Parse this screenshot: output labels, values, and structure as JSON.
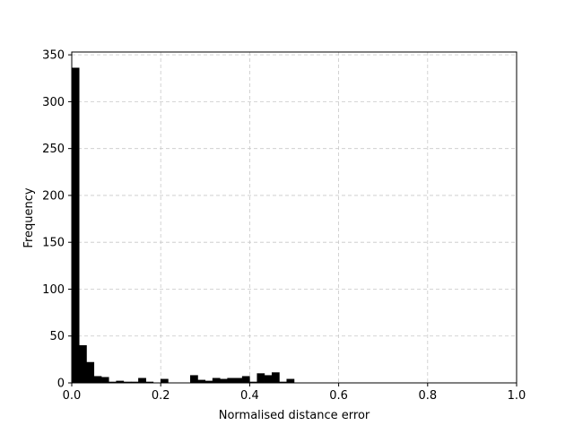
{
  "chart_data": {
    "type": "bar",
    "title": "",
    "xlabel": "Normalised distance error",
    "ylabel": "Frequency",
    "xlim": [
      0.0,
      1.0
    ],
    "ylim": [
      0,
      353
    ],
    "xticks": [
      "0.0",
      "0.2",
      "0.4",
      "0.6",
      "0.8",
      "1.0"
    ],
    "xtick_values": [
      0.0,
      0.2,
      0.4,
      0.6,
      0.8,
      1.0
    ],
    "yticks": [
      "0",
      "50",
      "100",
      "150",
      "200",
      "250",
      "300",
      "350"
    ],
    "ytick_values": [
      0,
      50,
      100,
      150,
      200,
      250,
      300,
      350
    ],
    "grid": true,
    "bar_color": "#000000",
    "bins": [
      {
        "x0": 0.0,
        "x1": 0.0167,
        "value": 336
      },
      {
        "x0": 0.0167,
        "x1": 0.0333,
        "value": 40
      },
      {
        "x0": 0.0333,
        "x1": 0.05,
        "value": 22
      },
      {
        "x0": 0.05,
        "x1": 0.0667,
        "value": 7
      },
      {
        "x0": 0.0667,
        "x1": 0.0833,
        "value": 6
      },
      {
        "x0": 0.0833,
        "x1": 0.1,
        "value": 1
      },
      {
        "x0": 0.1,
        "x1": 0.1167,
        "value": 2
      },
      {
        "x0": 0.1167,
        "x1": 0.1333,
        "value": 1
      },
      {
        "x0": 0.1333,
        "x1": 0.15,
        "value": 1
      },
      {
        "x0": 0.15,
        "x1": 0.1667,
        "value": 5
      },
      {
        "x0": 0.1667,
        "x1": 0.1833,
        "value": 1
      },
      {
        "x0": 0.1833,
        "x1": 0.2,
        "value": 0
      },
      {
        "x0": 0.2,
        "x1": 0.2167,
        "value": 4
      },
      {
        "x0": 0.2167,
        "x1": 0.2333,
        "value": 0
      },
      {
        "x0": 0.2333,
        "x1": 0.25,
        "value": 0
      },
      {
        "x0": 0.25,
        "x1": 0.2667,
        "value": 0
      },
      {
        "x0": 0.2667,
        "x1": 0.2833,
        "value": 8
      },
      {
        "x0": 0.2833,
        "x1": 0.3,
        "value": 3
      },
      {
        "x0": 0.3,
        "x1": 0.3167,
        "value": 2
      },
      {
        "x0": 0.3167,
        "x1": 0.3333,
        "value": 5
      },
      {
        "x0": 0.3333,
        "x1": 0.35,
        "value": 4
      },
      {
        "x0": 0.35,
        "x1": 0.3667,
        "value": 5
      },
      {
        "x0": 0.3667,
        "x1": 0.3833,
        "value": 5
      },
      {
        "x0": 0.3833,
        "x1": 0.4,
        "value": 7
      },
      {
        "x0": 0.4,
        "x1": 0.4167,
        "value": 1
      },
      {
        "x0": 0.4167,
        "x1": 0.4333,
        "value": 10
      },
      {
        "x0": 0.4333,
        "x1": 0.45,
        "value": 8
      },
      {
        "x0": 0.45,
        "x1": 0.4667,
        "value": 11
      },
      {
        "x0": 0.4667,
        "x1": 0.4833,
        "value": 1
      },
      {
        "x0": 0.4833,
        "x1": 0.5,
        "value": 4
      }
    ]
  }
}
